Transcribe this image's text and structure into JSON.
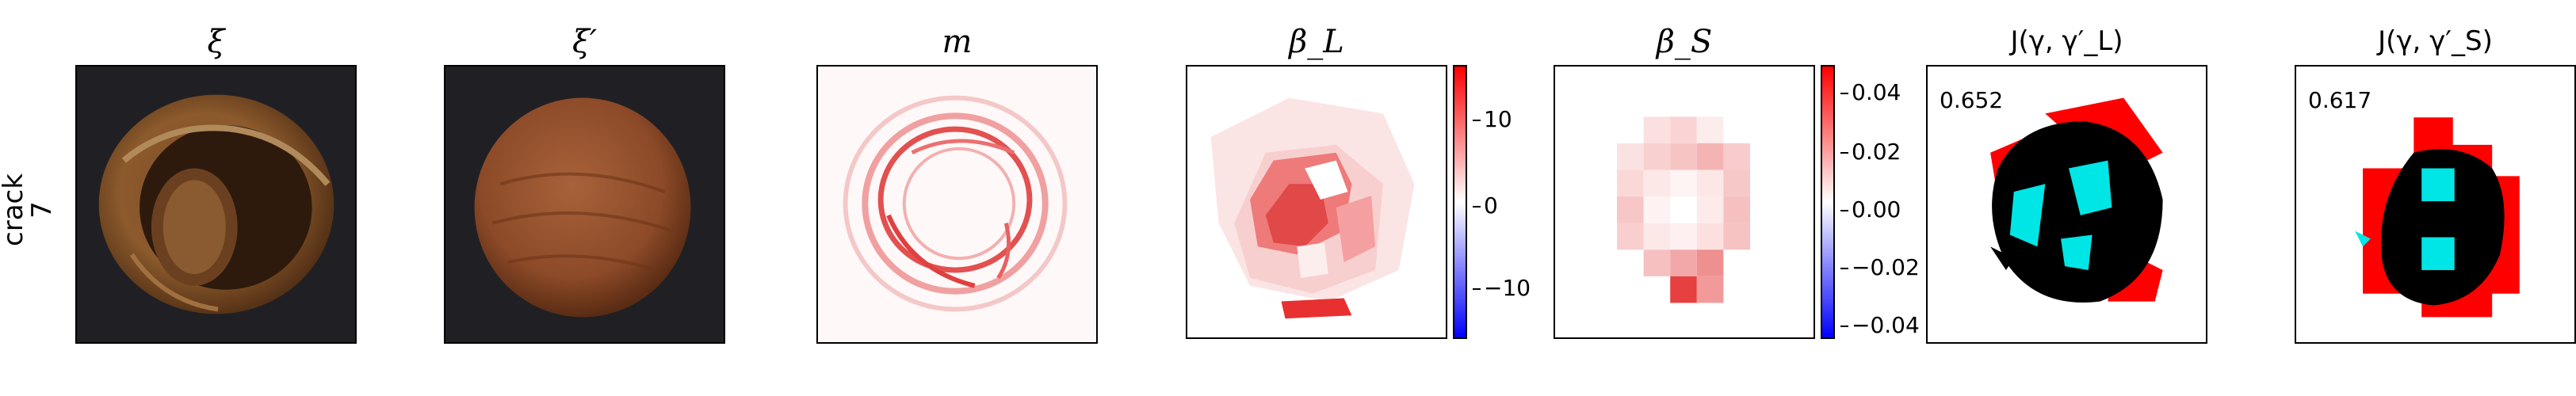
{
  "row_label": {
    "line1": "crack",
    "line2": "7"
  },
  "panels": [
    {
      "title": "ξ"
    },
    {
      "title": "ξ′"
    },
    {
      "title": "m"
    },
    {
      "title": "β_L"
    },
    {
      "title": "β_S"
    },
    {
      "title": "J(γ, γ′_L)"
    },
    {
      "title": "J(γ, γ′_S)"
    }
  ],
  "colorbar_L": {
    "ticks": [
      "10",
      "0",
      "−10"
    ],
    "colors": [
      "#0000ff",
      "#ffffff",
      "#ff0000"
    ]
  },
  "colorbar_S": {
    "ticks": [
      "0.04",
      "0.02",
      "0.00",
      "−0.02",
      "−0.04"
    ],
    "colors": [
      "#0000ff",
      "#ffffff",
      "#ff0000"
    ]
  },
  "iou_L": "0.652",
  "iou_S": "0.617"
}
